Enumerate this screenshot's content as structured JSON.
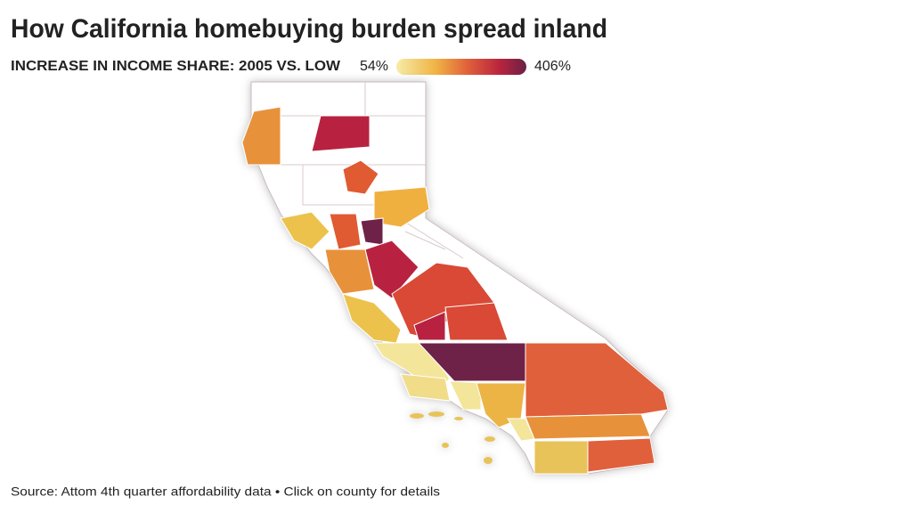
{
  "header": {
    "title": "How California homebuying burden spread inland",
    "subtitle": "INCREASE IN INCOME SHARE: 2005 VS. LOW"
  },
  "legend": {
    "min": "54%",
    "max": "406%"
  },
  "footer": {
    "source": "Source: Attom 4th quarter affordability data • Click on county for details"
  }
}
